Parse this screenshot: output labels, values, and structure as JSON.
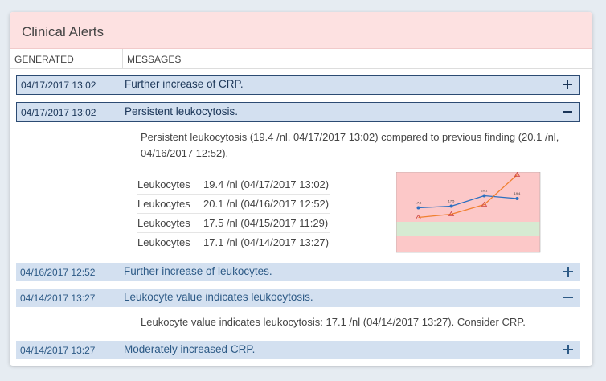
{
  "header": {
    "title": "Clinical Alerts"
  },
  "columns": [
    "GENERATED",
    "MESSAGES"
  ],
  "alerts": [
    {
      "generated": "04/17/2017 13:02",
      "message": "Further increase of CRP."
    },
    {
      "generated": "04/17/2017 13:02",
      "message": "Persistent leukocytosis.",
      "detail": "Persistent leukocytosis (19.4 /nl, 04/17/2017 13:02) compared to previous finding (20.1 /nl, 04/16/2017 12:52).",
      "findings": [
        [
          "Leukocytes",
          "19.4 /nl (04/17/2017 13:02)"
        ],
        [
          "Leukocytes",
          "20.1 /nl (04/16/2017 12:52)"
        ],
        [
          "Leukocytes",
          "17.5 /nl (04/15/2017 11:29)"
        ],
        [
          "Leukocytes",
          "17.1 /nl (04/14/2017 13:27)"
        ]
      ]
    },
    {
      "generated": "04/16/2017 12:52",
      "message": "Further increase of leukocytes."
    },
    {
      "generated": "04/14/2017 13:27",
      "message": "Leukocyte value indicates leukocytosis.",
      "detail": "Leukocyte value indicates leukocytosis: 17.1 /nl (04/14/2017 13:27). Consider CRP."
    },
    {
      "generated": "04/14/2017 13:27",
      "message": "Moderately increased CRP."
    }
  ],
  "chart_data": {
    "type": "line",
    "categories": [
      null,
      null,
      null,
      null
    ],
    "series": [
      {
        "color": "#2a6fc0",
        "values": [
          17.1,
          17.5,
          20.1,
          19.4
        ]
      },
      {
        "color": "#f08030",
        "values": [
          14.7,
          15.5,
          17.9,
          25.3
        ]
      }
    ],
    "ylim": [
      6,
      26
    ]
  }
}
